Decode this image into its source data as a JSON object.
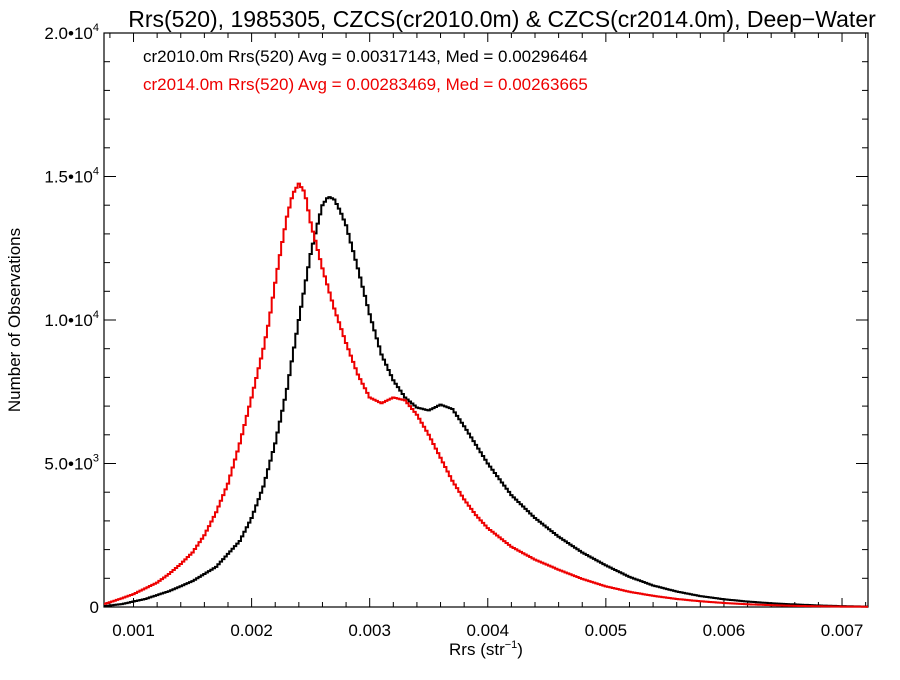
{
  "chart_data": {
    "type": "line",
    "title": "Rrs(520), 1985305, CZCS(cr2010.0m) & CZCS(cr2014.0m), Deep−Water",
    "xlabel_main": "Rrs (str",
    "xlabel_sup": "−1",
    "xlabel_close": ")",
    "ylabel": "Number of Observations",
    "xlim": [
      0.00075,
      0.00722
    ],
    "ylim": [
      0,
      20000
    ],
    "grid": false,
    "x_ticks": [
      {
        "value": 0.001,
        "label": "0.001"
      },
      {
        "value": 0.002,
        "label": "0.002"
      },
      {
        "value": 0.003,
        "label": "0.003"
      },
      {
        "value": 0.004,
        "label": "0.004"
      },
      {
        "value": 0.005,
        "label": "0.005"
      },
      {
        "value": 0.006,
        "label": "0.006"
      },
      {
        "value": 0.007,
        "label": "0.007"
      }
    ],
    "x_minor_step": 0.0002,
    "y_ticks": [
      {
        "value": 0,
        "base": "0",
        "exp": ""
      },
      {
        "value": 5000,
        "base": "5.0•10",
        "exp": "3"
      },
      {
        "value": 10000,
        "base": "1.0•10",
        "exp": "4"
      },
      {
        "value": 15000,
        "base": "1.5•10",
        "exp": "4"
      },
      {
        "value": 20000,
        "base": "2.0•10",
        "exp": "4"
      }
    ],
    "y_minor_step": 1000,
    "annotations": [
      {
        "text": "cr2010.0m Rrs(520) Avg = 0.00317143, Med = 0.00296464",
        "color": "#000000"
      },
      {
        "text": "cr2014.0m Rrs(520) Avg = 0.00283469, Med = 0.00263665",
        "color": "#ee0000"
      }
    ],
    "series": [
      {
        "color": "#000000",
        "x": [
          0.00075,
          0.0009,
          0.0011,
          0.0013,
          0.0015,
          0.0017,
          0.0019,
          0.002,
          0.0021,
          0.0022,
          0.0023,
          0.0024,
          0.0025,
          0.00255,
          0.0026,
          0.00265,
          0.0027,
          0.00275,
          0.0028,
          0.0029,
          0.003,
          0.0031,
          0.0032,
          0.0033,
          0.0034,
          0.0035,
          0.0036,
          0.0037,
          0.0038,
          0.0039,
          0.004,
          0.0042,
          0.0044,
          0.0046,
          0.0048,
          0.005,
          0.0052,
          0.0054,
          0.0056,
          0.0058,
          0.006,
          0.0062,
          0.0064,
          0.0066,
          0.0068,
          0.007,
          0.00722
        ],
        "y": [
          30,
          100,
          280,
          550,
          900,
          1400,
          2300,
          3100,
          4200,
          5700,
          7600,
          10000,
          12300,
          13200,
          14000,
          14300,
          14200,
          13800,
          13300,
          11800,
          10200,
          8800,
          7900,
          7300,
          6950,
          6850,
          7050,
          6900,
          6300,
          5650,
          5000,
          3900,
          3100,
          2450,
          1900,
          1450,
          1050,
          750,
          540,
          380,
          270,
          190,
          130,
          90,
          55,
          30,
          15
        ]
      },
      {
        "color": "#ee0000",
        "x": [
          0.00075,
          0.0009,
          0.001,
          0.0011,
          0.0012,
          0.0013,
          0.0014,
          0.0015,
          0.0016,
          0.0017,
          0.0018,
          0.0019,
          0.002,
          0.0021,
          0.00215,
          0.0022,
          0.00225,
          0.0023,
          0.00235,
          0.0024,
          0.00245,
          0.0025,
          0.0026,
          0.0027,
          0.0028,
          0.0029,
          0.003,
          0.0031,
          0.00315,
          0.0032,
          0.0033,
          0.0034,
          0.0035,
          0.0036,
          0.0037,
          0.0038,
          0.0039,
          0.004,
          0.0042,
          0.0044,
          0.0046,
          0.0048,
          0.005,
          0.0052,
          0.0054,
          0.0056,
          0.0058,
          0.006,
          0.0062,
          0.0064,
          0.0066,
          0.0068,
          0.007,
          0.00722
        ],
        "y": [
          100,
          300,
          450,
          650,
          850,
          1150,
          1500,
          1900,
          2500,
          3300,
          4300,
          5700,
          7300,
          9000,
          10000,
          11300,
          12500,
          13600,
          14400,
          14750,
          14450,
          13400,
          11800,
          10400,
          9200,
          8100,
          7300,
          7100,
          7200,
          7300,
          7200,
          6700,
          6000,
          5200,
          4400,
          3750,
          3200,
          2750,
          2100,
          1650,
          1300,
          980,
          720,
          530,
          390,
          280,
          200,
          140,
          95,
          65,
          40,
          25,
          15,
          10
        ]
      }
    ]
  }
}
